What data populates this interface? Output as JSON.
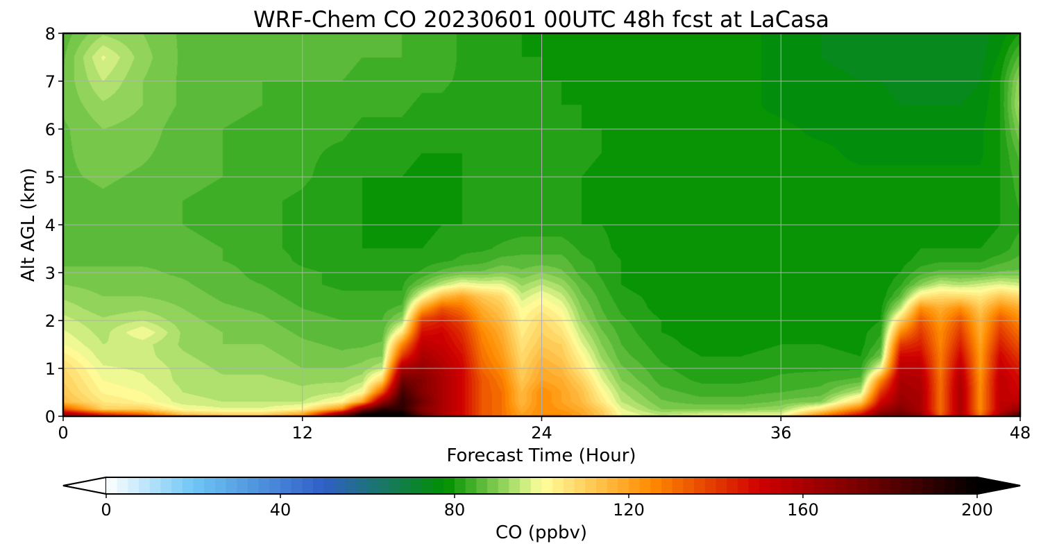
{
  "chart_data": {
    "type": "heatmap",
    "title": "WRF-Chem CO  20230601 00UTC 48h fcst at LaCasa",
    "xlabel": "Forecast Time (Hour)",
    "ylabel": "Alt AGL (km)",
    "xlim": [
      0,
      48
    ],
    "ylim": [
      0,
      8
    ],
    "xticks": [
      "0",
      "12",
      "24",
      "36",
      "48"
    ],
    "yticks": [
      "0",
      "1",
      "2",
      "3",
      "4",
      "5",
      "6",
      "7",
      "8"
    ],
    "grid": true,
    "colorbar": {
      "label": "CO  (ppbv)",
      "range": [
        0,
        200
      ],
      "extend": "both",
      "ticks": [
        "0",
        "40",
        "80",
        "120",
        "160",
        "200"
      ],
      "color_stops": [
        {
          "value": 0,
          "color": "#ffffff"
        },
        {
          "value": 20,
          "color": "#6ec6f5"
        },
        {
          "value": 50,
          "color": "#2f5fc6"
        },
        {
          "value": 78,
          "color": "#009000"
        },
        {
          "value": 92,
          "color": "#9ad860"
        },
        {
          "value": 100,
          "color": "#ffff9e"
        },
        {
          "value": 125,
          "color": "#ff8c00"
        },
        {
          "value": 150,
          "color": "#d00000"
        },
        {
          "value": 175,
          "color": "#700000"
        },
        {
          "value": 200,
          "color": "#000000"
        }
      ]
    },
    "x": [
      0,
      2,
      4,
      6,
      8,
      10,
      12,
      14,
      15,
      16,
      17,
      18,
      19,
      20,
      21,
      22,
      23,
      24,
      25,
      26,
      27,
      28,
      30,
      32,
      34,
      36,
      38,
      40,
      41,
      42,
      43,
      44,
      45,
      46,
      47,
      48
    ],
    "y": [
      0,
      0.05,
      0.15,
      0.3,
      0.5,
      0.75,
      1,
      1.25,
      1.5,
      1.75,
      2,
      2.25,
      2.5,
      2.75,
      3,
      3.25,
      3.5,
      4,
      4.5,
      5,
      5.5,
      6,
      6.5,
      7,
      7.5,
      8
    ],
    "z": [
      [
        170,
        150,
        145,
        120,
        115,
        115,
        125,
        175,
        200,
        200,
        200,
        180,
        160,
        150,
        135,
        130,
        120,
        125,
        125,
        120,
        112,
        100,
        96,
        100,
        100,
        100,
        130,
        155,
        175,
        180,
        170,
        135,
        165,
        130,
        165,
        185
      ],
      [
        160,
        140,
        130,
        112,
        108,
        108,
        118,
        165,
        195,
        200,
        200,
        175,
        160,
        150,
        135,
        130,
        120,
        125,
        125,
        120,
        112,
        100,
        94,
        96,
        97,
        97,
        120,
        145,
        170,
        175,
        165,
        132,
        160,
        128,
        160,
        180
      ],
      [
        135,
        110,
        110,
        100,
        98,
        98,
        102,
        125,
        170,
        190,
        190,
        170,
        160,
        150,
        135,
        130,
        118,
        125,
        122,
        118,
        110,
        98,
        90,
        90,
        90,
        92,
        105,
        130,
        160,
        170,
        160,
        130,
        160,
        125,
        155,
        165
      ],
      [
        115,
        105,
        102,
        96,
        95,
        95,
        95,
        102,
        120,
        165,
        190,
        175,
        160,
        150,
        135,
        130,
        115,
        125,
        120,
        115,
        105,
        95,
        88,
        86,
        86,
        88,
        90,
        110,
        150,
        165,
        160,
        130,
        160,
        125,
        155,
        155
      ],
      [
        112,
        102,
        100,
        95,
        94,
        94,
        93,
        95,
        100,
        135,
        185,
        170,
        160,
        150,
        135,
        130,
        115,
        125,
        120,
        114,
        102,
        93,
        86,
        84,
        84,
        85,
        86,
        95,
        140,
        162,
        160,
        130,
        160,
        125,
        155,
        150
      ],
      [
        110,
        100,
        98,
        94,
        93,
        93,
        92,
        92,
        94,
        110,
        175,
        170,
        160,
        150,
        135,
        128,
        112,
        120,
        118,
        110,
        98,
        90,
        84,
        82,
        82,
        83,
        84,
        86,
        125,
        160,
        158,
        130,
        158,
        124,
        155,
        148
      ],
      [
        108,
        98,
        97,
        94,
        92,
        92,
        90,
        90,
        91,
        95,
        160,
        165,
        158,
        150,
        132,
        125,
        110,
        118,
        115,
        105,
        95,
        88,
        83,
        81,
        81,
        82,
        82,
        82,
        100,
        155,
        155,
        128,
        155,
        122,
        152,
        145
      ],
      [
        104,
        96,
        96,
        93,
        91,
        91,
        89,
        88,
        89,
        90,
        140,
        160,
        155,
        148,
        130,
        122,
        108,
        115,
        112,
        102,
        92,
        86,
        82,
        80,
        80,
        81,
        81,
        80,
        88,
        150,
        150,
        128,
        150,
        122,
        150,
        140
      ],
      [
        100,
        95,
        96,
        92,
        90,
        90,
        88,
        87,
        87,
        88,
        125,
        155,
        152,
        145,
        128,
        120,
        106,
        112,
        110,
        98,
        90,
        85,
        81,
        79,
        79,
        80,
        80,
        79,
        84,
        140,
        145,
        126,
        145,
        120,
        145,
        135
      ],
      [
        98,
        94,
        100,
        92,
        90,
        89,
        87,
        86,
        86,
        86,
        105,
        148,
        150,
        142,
        126,
        118,
        104,
        110,
        106,
        95,
        88,
        84,
        80,
        79,
        79,
        79,
        79,
        79,
        82,
        125,
        140,
        125,
        140,
        118,
        140,
        130
      ],
      [
        96,
        93,
        95,
        91,
        89,
        88,
        86,
        85,
        85,
        85,
        92,
        140,
        145,
        138,
        122,
        115,
        102,
        108,
        103,
        92,
        86,
        83,
        80,
        78,
        78,
        78,
        78,
        78,
        80,
        110,
        135,
        122,
        135,
        116,
        135,
        125
      ],
      [
        94,
        91,
        92,
        90,
        88,
        87,
        85,
        84,
        84,
        84,
        86,
        120,
        135,
        130,
        118,
        112,
        100,
        104,
        100,
        90,
        85,
        82,
        79,
        78,
        78,
        78,
        78,
        78,
        79,
        95,
        125,
        118,
        125,
        112,
        125,
        118
      ],
      [
        92,
        90,
        90,
        89,
        87,
        86,
        84,
        83,
        83,
        83,
        83,
        100,
        115,
        120,
        112,
        108,
        96,
        100,
        96,
        88,
        84,
        81,
        79,
        78,
        78,
        78,
        78,
        78,
        78,
        86,
        105,
        108,
        108,
        105,
        112,
        108
      ],
      [
        90,
        89,
        89,
        88,
        86,
        85,
        83,
        82,
        82,
        82,
        82,
        88,
        95,
        100,
        98,
        98,
        92,
        95,
        92,
        86,
        83,
        80,
        78,
        78,
        78,
        78,
        78,
        78,
        78,
        82,
        90,
        96,
        94,
        96,
        98,
        96
      ],
      [
        88,
        88,
        88,
        87,
        86,
        84,
        83,
        82,
        81,
        81,
        81,
        83,
        86,
        88,
        88,
        90,
        88,
        90,
        88,
        84,
        82,
        80,
        78,
        78,
        78,
        78,
        78,
        78,
        78,
        80,
        84,
        86,
        86,
        86,
        88,
        88
      ],
      [
        87,
        87,
        87,
        87,
        85,
        84,
        82,
        81,
        81,
        80,
        80,
        81,
        82,
        83,
        84,
        86,
        86,
        86,
        86,
        83,
        82,
        80,
        78,
        78,
        78,
        78,
        78,
        78,
        78,
        79,
        81,
        82,
        82,
        82,
        84,
        86
      ],
      [
        86,
        86,
        87,
        86,
        85,
        83,
        82,
        81,
        80,
        80,
        80,
        80,
        81,
        82,
        82,
        83,
        84,
        84,
        84,
        82,
        81,
        79,
        78,
        78,
        78,
        78,
        78,
        78,
        78,
        78,
        80,
        80,
        80,
        80,
        81,
        84
      ],
      [
        86,
        86,
        86,
        85,
        84,
        83,
        82,
        80,
        80,
        79,
        79,
        79,
        80,
        80,
        81,
        81,
        81,
        81,
        81,
        80,
        80,
        79,
        78,
        78,
        78,
        78,
        78,
        78,
        78,
        78,
        79,
        79,
        79,
        79,
        80,
        82
      ],
      [
        86,
        87,
        86,
        85,
        84,
        83,
        82,
        80,
        80,
        79,
        79,
        79,
        79,
        80,
        80,
        80,
        80,
        80,
        80,
        80,
        79,
        79,
        78,
        78,
        78,
        78,
        78,
        78,
        78,
        78,
        78,
        78,
        78,
        78,
        80,
        83
      ],
      [
        87,
        88,
        87,
        86,
        85,
        84,
        83,
        81,
        80,
        80,
        80,
        79,
        79,
        80,
        80,
        80,
        80,
        80,
        81,
        80,
        79,
        79,
        79,
        78,
        79,
        78,
        78,
        78,
        78,
        78,
        78,
        78,
        78,
        78,
        80,
        84
      ],
      [
        87,
        89,
        88,
        86,
        85,
        84,
        83,
        82,
        81,
        81,
        81,
        80,
        80,
        80,
        80,
        80,
        80,
        80,
        81,
        81,
        80,
        79,
        79,
        78,
        78,
        78,
        78,
        77,
        77,
        77,
        77,
        77,
        77,
        77,
        80,
        86
      ],
      [
        87,
        90,
        89,
        86,
        85,
        84,
        83,
        83,
        82,
        82,
        82,
        81,
        81,
        80,
        80,
        80,
        80,
        80,
        81,
        80,
        80,
        79,
        79,
        78,
        78,
        78,
        77,
        77,
        76,
        76,
        76,
        76,
        76,
        77,
        80,
        90
      ],
      [
        88,
        92,
        90,
        87,
        86,
        85,
        84,
        84,
        83,
        83,
        83,
        82,
        82,
        81,
        80,
        80,
        80,
        80,
        80,
        80,
        79,
        79,
        79,
        78,
        78,
        77,
        76,
        76,
        76,
        75,
        75,
        75,
        75,
        76,
        80,
        94
      ],
      [
        88,
        95,
        90,
        87,
        86,
        85,
        85,
        85,
        84,
        84,
        84,
        83,
        83,
        82,
        81,
        80,
        80,
        80,
        80,
        79,
        79,
        79,
        79,
        78,
        78,
        77,
        76,
        75,
        75,
        74,
        74,
        74,
        74,
        75,
        80,
        92
      ],
      [
        87,
        98,
        91,
        87,
        86,
        86,
        86,
        86,
        85,
        85,
        85,
        84,
        84,
        82,
        81,
        80,
        80,
        80,
        79,
        79,
        79,
        79,
        79,
        78,
        78,
        77,
        75,
        74,
        74,
        73,
        73,
        73,
        73,
        74,
        78,
        86
      ],
      [
        86,
        92,
        90,
        87,
        86,
        86,
        86,
        86,
        85,
        85,
        85,
        84,
        84,
        82,
        81,
        80,
        80,
        79,
        79,
        79,
        79,
        79,
        79,
        78,
        78,
        77,
        75,
        74,
        74,
        73,
        73,
        73,
        73,
        74,
        76,
        80
      ]
    ]
  }
}
